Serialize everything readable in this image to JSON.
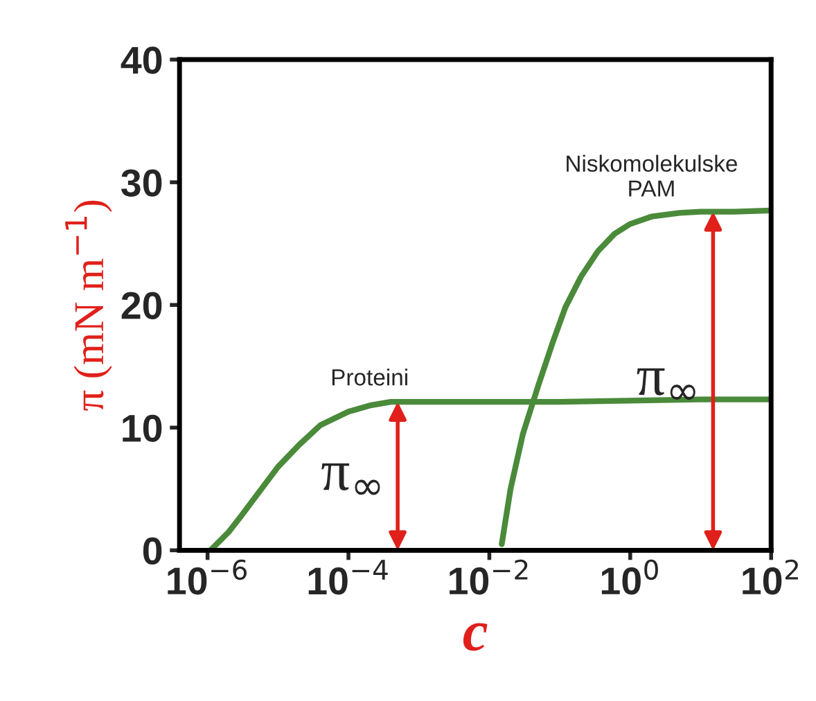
{
  "chart_data": {
    "type": "line",
    "xlabel": "c",
    "ylabel": "π (mN m$^{−1}$)",
    "log": "x",
    "grid": false,
    "legend": false,
    "xlim": [
      4e-07,
      100
    ],
    "ylim": [
      0,
      40
    ],
    "xticks": [
      {
        "value": 1e-06,
        "label": "10$^{−6}$"
      },
      {
        "value": 0.0001,
        "label": "10$^{−4}$"
      },
      {
        "value": 0.01,
        "label": "10$^{−2}$"
      },
      {
        "value": 1,
        "label": "10$^{0}$"
      },
      {
        "value": 100,
        "label": "10$^{2}$"
      }
    ],
    "yticks": [
      0,
      10,
      20,
      30,
      40
    ],
    "series": [
      {
        "name": "Proteini",
        "color": "#4a8a3a",
        "x": [
          1.1e-06,
          2e-06,
          3e-06,
          5e-06,
          1e-05,
          2e-05,
          4e-05,
          0.0001,
          0.0002,
          0.0004,
          0.001,
          0.01,
          0.1,
          1,
          10,
          100
        ],
        "values": [
          0,
          1.5,
          2.8,
          4.5,
          6.8,
          8.6,
          10.2,
          11.3,
          11.8,
          12.1,
          12.1,
          12.1,
          12.1,
          12.2,
          12.3,
          12.3
        ]
      },
      {
        "name": "Niskomolekulske\nPAM",
        "color": "#4a8a3a",
        "x": [
          0.015,
          0.02,
          0.03,
          0.05,
          0.08,
          0.12,
          0.2,
          0.35,
          0.6,
          1,
          2,
          5,
          10,
          30,
          100
        ],
        "values": [
          0.5,
          5,
          9.5,
          13.5,
          17,
          19.8,
          22.3,
          24.4,
          25.8,
          26.6,
          27.2,
          27.5,
          27.6,
          27.6,
          27.7
        ]
      }
    ],
    "annotations": [
      {
        "text": "π$_{∞}$",
        "x": 0.0005,
        "y": 12.1
      },
      {
        "text": "π$_{∞}$",
        "x": 15,
        "y": 27.6
      }
    ]
  }
}
